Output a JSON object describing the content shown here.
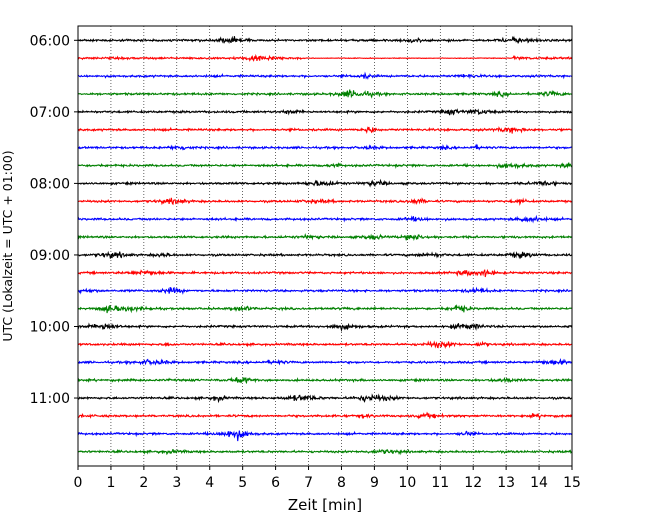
{
  "chart_data": {
    "type": "line",
    "title": "",
    "xlabel": "Zeit  [min]",
    "ylabel": "UTC (Lokalzeit = UTC + 01:00)",
    "xlim": [
      0,
      15
    ],
    "x_ticks": [
      "0",
      "1",
      "2",
      "3",
      "4",
      "5",
      "6",
      "7",
      "8",
      "9",
      "10",
      "11",
      "12",
      "13",
      "14",
      "15"
    ],
    "y_tick_labels": [
      "06:00",
      "07:00",
      "08:00",
      "09:00",
      "10:00",
      "11:00"
    ],
    "y_ticks_minutes": [
      0,
      60,
      120,
      180,
      240,
      300
    ],
    "y_range_minutes": [
      -12,
      357
    ],
    "grid": "x-only dotted",
    "series_colors": [
      "#000000",
      "#ff0000",
      "#0000ff",
      "#008000"
    ],
    "trace_start_minutes": [
      0,
      15,
      30,
      45,
      60,
      75,
      90,
      105,
      120,
      135,
      150,
      165,
      180,
      195,
      210,
      225,
      240,
      255,
      270,
      285,
      300,
      315,
      330,
      345
    ],
    "trace_start_labels": [
      "06:00",
      "06:15",
      "06:30",
      "06:45",
      "07:00",
      "07:15",
      "07:30",
      "07:45",
      "08:00",
      "08:15",
      "08:30",
      "08:45",
      "09:00",
      "09:15",
      "09:30",
      "09:45",
      "10:00",
      "10:15",
      "10:30",
      "10:45",
      "11:00",
      "11:15",
      "11:30",
      "11:45"
    ],
    "trace_notes": {
      "quiet_segment": {
        "trace": "06:15",
        "from_min": 6.8,
        "to_min": 13.2
      }
    }
  }
}
